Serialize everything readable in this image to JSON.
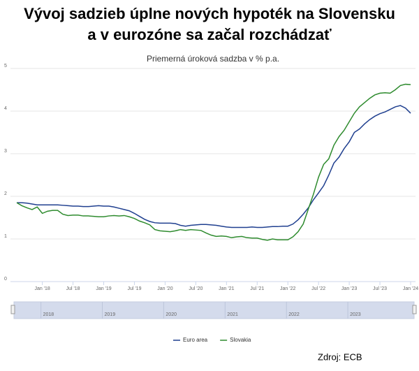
{
  "chart_data": {
    "type": "line",
    "title": "Vývoj sadzieb úplne nových hypoték na Slovensku",
    "title_line2": "a v eurozóne sa začal rozchádzať",
    "subtitle": "Priemerná úroková sadzba v % p.a.",
    "source": "Zdroj: ECB",
    "categories": [
      null,
      null,
      null,
      null,
      null,
      "Jan '18",
      null,
      null,
      null,
      null,
      null,
      "Jul '18",
      null,
      null,
      null,
      null,
      null,
      "Jan '19",
      null,
      null,
      null,
      null,
      null,
      "Jul '19",
      null,
      null,
      null,
      null,
      null,
      "Jan '20",
      null,
      null,
      null,
      null,
      null,
      "Jul '20",
      null,
      null,
      null,
      null,
      null,
      "Jan '21",
      null,
      null,
      null,
      null,
      null,
      "Jul '21",
      null,
      null,
      null,
      null,
      null,
      "Jan '22",
      null,
      null,
      null,
      null,
      null,
      "Jul '22",
      null,
      null,
      null,
      null,
      null,
      "Jan '23",
      null,
      null,
      null,
      null,
      null,
      "Jul '23",
      null,
      null,
      null,
      null,
      null,
      "Jan '24"
    ],
    "series": [
      {
        "name": "Euro area",
        "color": "#1f3f8f",
        "values": [
          1.85,
          1.85,
          1.84,
          1.82,
          1.8,
          1.8,
          1.8,
          1.8,
          1.8,
          1.79,
          1.78,
          1.77,
          1.77,
          1.76,
          1.76,
          1.77,
          1.78,
          1.77,
          1.77,
          1.75,
          1.72,
          1.69,
          1.66,
          1.6,
          1.53,
          1.46,
          1.41,
          1.38,
          1.37,
          1.37,
          1.37,
          1.36,
          1.32,
          1.3,
          1.32,
          1.33,
          1.34,
          1.34,
          1.33,
          1.32,
          1.3,
          1.28,
          1.27,
          1.27,
          1.27,
          1.27,
          1.28,
          1.27,
          1.27,
          1.28,
          1.29,
          1.29,
          1.3,
          1.3,
          1.35,
          1.45,
          1.58,
          1.73,
          1.92,
          2.08,
          2.25,
          2.5,
          2.78,
          2.92,
          3.12,
          3.28,
          3.5,
          3.58,
          3.7,
          3.8,
          3.88,
          3.94,
          3.98,
          4.04,
          4.1,
          4.13,
          4.07,
          3.95
        ]
      },
      {
        "name": "Slovakia",
        "color": "#2e8b2e",
        "values": [
          1.85,
          1.78,
          1.73,
          1.69,
          1.75,
          1.6,
          1.65,
          1.67,
          1.67,
          1.58,
          1.55,
          1.56,
          1.56,
          1.54,
          1.54,
          1.53,
          1.52,
          1.52,
          1.54,
          1.55,
          1.54,
          1.55,
          1.52,
          1.48,
          1.42,
          1.38,
          1.33,
          1.22,
          1.19,
          1.18,
          1.17,
          1.19,
          1.22,
          1.2,
          1.22,
          1.21,
          1.2,
          1.14,
          1.09,
          1.06,
          1.07,
          1.06,
          1.03,
          1.05,
          1.06,
          1.03,
          1.02,
          1.02,
          0.99,
          0.97,
          1.0,
          0.98,
          0.98,
          0.98,
          1.05,
          1.17,
          1.35,
          1.7,
          2.05,
          2.45,
          2.75,
          2.88,
          3.2,
          3.4,
          3.55,
          3.75,
          3.95,
          4.1,
          4.2,
          4.3,
          4.38,
          4.42,
          4.43,
          4.42,
          4.5,
          4.6,
          4.63,
          4.62
        ]
      }
    ],
    "ylim": [
      0,
      5
    ],
    "yticks": [
      0,
      1,
      2,
      3,
      4,
      5
    ],
    "grid": true,
    "legend": "bottom",
    "navigator_labels": [
      "2018",
      "2019",
      "2020",
      "2021",
      "2022",
      "2023"
    ]
  }
}
